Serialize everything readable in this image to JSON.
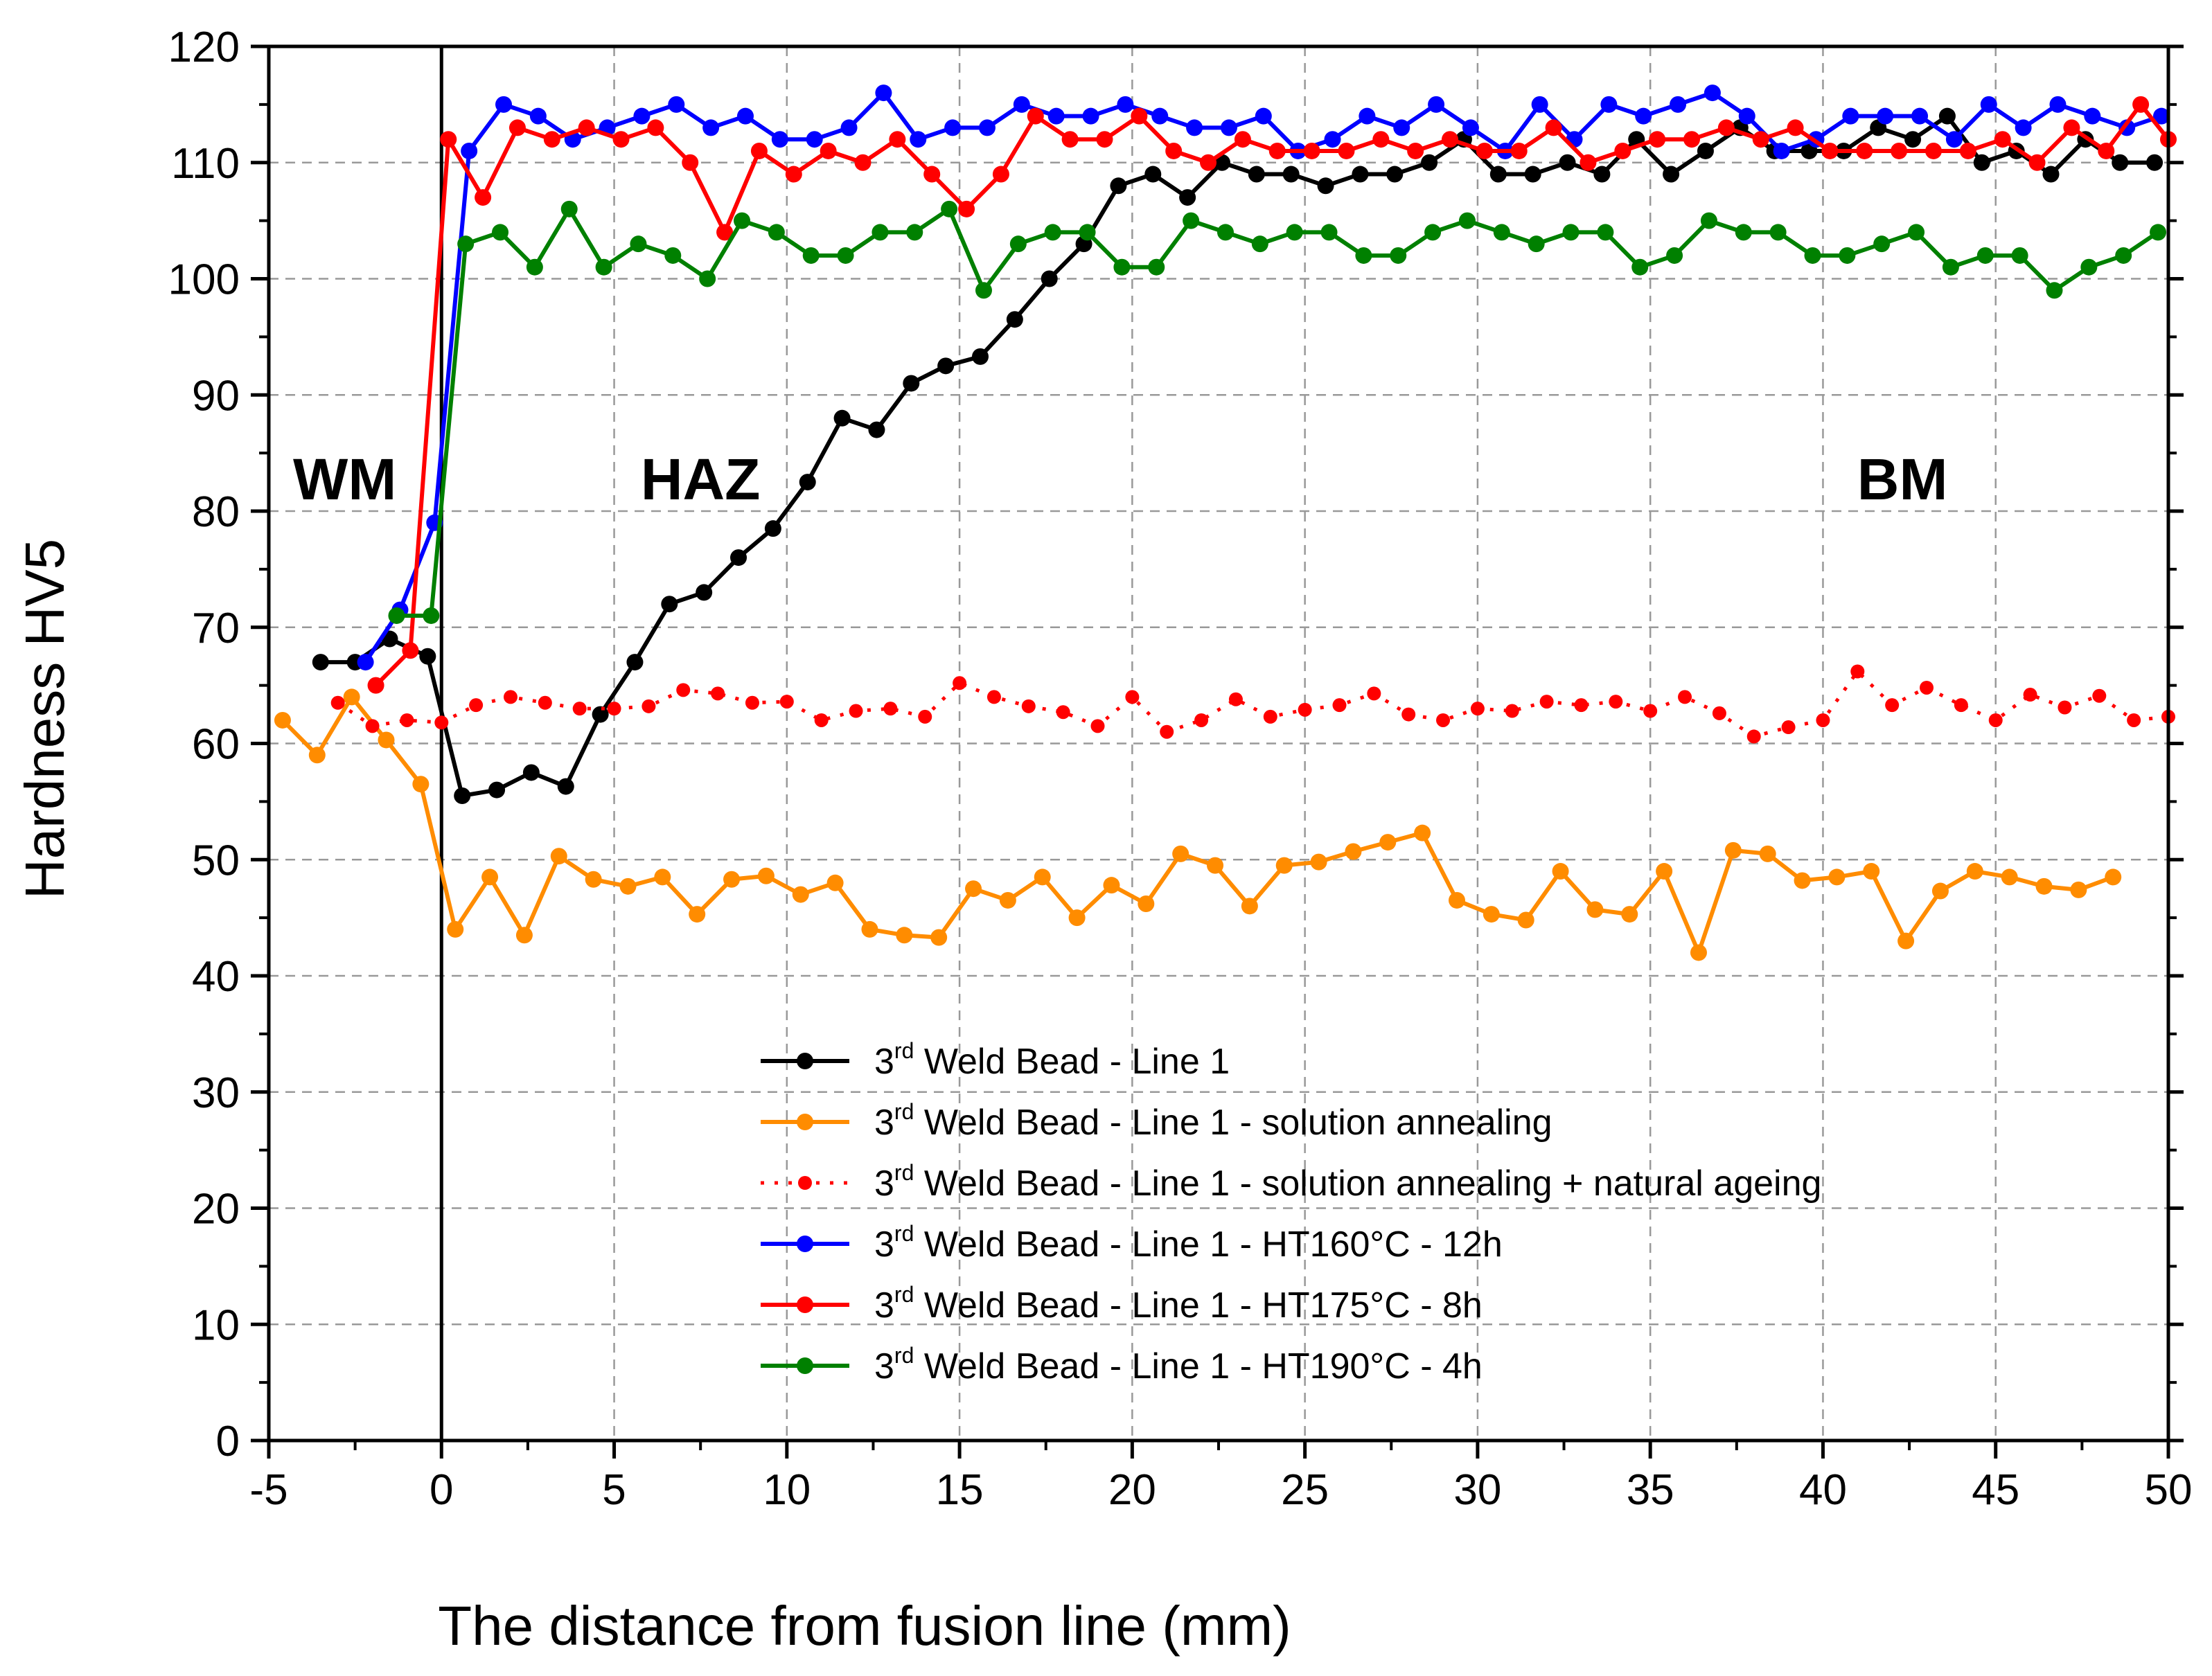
{
  "chart_data": {
    "type": "line",
    "title": "",
    "xlabel": "The distance from fusion line (mm)",
    "ylabel": "Hardness HV5",
    "xlim": [
      -5,
      50
    ],
    "ylim": [
      0,
      120
    ],
    "xticks": [
      -5,
      0,
      5,
      10,
      15,
      20,
      25,
      30,
      35,
      40,
      45,
      50
    ],
    "yticks": [
      0,
      10,
      20,
      30,
      40,
      50,
      60,
      70,
      80,
      90,
      100,
      110,
      120
    ],
    "grid": true,
    "fusion_line_x": 0,
    "legend_position": "bottom-right",
    "annotations": [
      {
        "text": "WM",
        "x": -2.8,
        "y": 81
      },
      {
        "text": "HAZ",
        "x": 7.5,
        "y": 81
      },
      {
        "text": "BM",
        "x": 42.3,
        "y": 81
      }
    ],
    "series": [
      {
        "name": "3rd Weld Bead - Line 1",
        "legend_pre": "3",
        "legend_sup": "rd",
        "legend_post": " Weld Bead - Line 1",
        "color": "#000000",
        "dashed": false,
        "x": [
          -3.5,
          -2.5,
          -1.5,
          -0.4,
          0.6,
          1.6,
          2.6,
          3.6,
          4.6,
          5.6,
          6.6,
          7.6,
          8.6,
          9.6,
          10.6,
          11.6,
          12.6,
          13.6,
          14.6,
          15.6,
          16.6,
          17.6,
          18.6,
          19.6,
          20.6,
          21.6,
          22.6,
          23.6,
          24.6,
          25.6,
          26.6,
          27.6,
          28.6,
          29.6,
          30.6,
          31.6,
          32.6,
          33.6,
          34.6,
          35.6,
          36.6,
          37.6,
          38.6,
          39.6,
          40.6,
          41.6,
          42.6,
          43.6,
          44.6,
          45.6,
          46.6,
          47.6,
          48.6,
          49.6
        ],
        "y": [
          67,
          67,
          69,
          67.5,
          55.5,
          56,
          57.5,
          56.3,
          62.5,
          67,
          72,
          73,
          76,
          78.5,
          82.5,
          88,
          87,
          91,
          92.5,
          93.3,
          96.5,
          100,
          103,
          108,
          109,
          107,
          110,
          109,
          109,
          108,
          109,
          109,
          110,
          112,
          109,
          109,
          110,
          109,
          112,
          109,
          111,
          113,
          111,
          111,
          111,
          113,
          112,
          114,
          110,
          111,
          109,
          112,
          110,
          110
        ]
      },
      {
        "name": "3rd Weld Bead - Line 1 - solution annealing",
        "legend_pre": "3",
        "legend_sup": "rd",
        "legend_post": " Weld Bead - Line 1 - solution annealing",
        "color": "#FF8C00",
        "dashed": false,
        "x": [
          -4.6,
          -3.6,
          -2.6,
          -1.6,
          -0.6,
          0.4,
          1.4,
          2.4,
          3.4,
          4.4,
          5.4,
          6.4,
          7.4,
          8.4,
          9.4,
          10.4,
          11.4,
          12.4,
          13.4,
          14.4,
          15.4,
          16.4,
          17.4,
          18.4,
          19.4,
          20.4,
          21.4,
          22.4,
          23.4,
          24.4,
          25.4,
          26.4,
          27.4,
          28.4,
          29.4,
          30.4,
          31.4,
          32.4,
          33.4,
          34.4,
          35.4,
          36.4,
          37.4,
          38.4,
          39.4,
          40.4,
          41.4,
          42.4,
          43.4,
          44.4,
          45.4,
          46.4,
          47.4,
          48.4
        ],
        "y": [
          62,
          59,
          64,
          60.3,
          56.5,
          44,
          48.5,
          43.5,
          50.3,
          48.3,
          47.7,
          48.5,
          45.3,
          48.3,
          48.6,
          47,
          48,
          44,
          43.5,
          43.3,
          47.5,
          46.5,
          48.5,
          45,
          47.8,
          46.2,
          50.5,
          49.5,
          46,
          49.5,
          49.8,
          50.7,
          51.5,
          52.3,
          46.5,
          45.3,
          44.8,
          49,
          45.7,
          45.3,
          49,
          42,
          50.8,
          50.5,
          48.2,
          48.5,
          49,
          43,
          47.3,
          49,
          48.5,
          47.7,
          47.4,
          48.5
        ]
      },
      {
        "name": "3rd Weld Bead - Line 1 - solution annealing + natural ageing",
        "legend_pre": "3",
        "legend_sup": "rd",
        "legend_post": " Weld Bead - Line 1 - solution annealing + natural ageing",
        "color": "#FF0000",
        "dashed": true,
        "x": [
          -3,
          -2,
          -1,
          0,
          1,
          2,
          3,
          4,
          5,
          6,
          7,
          8,
          9,
          10,
          11,
          12,
          13,
          14,
          15,
          16,
          17,
          18,
          19,
          20,
          21,
          22,
          23,
          24,
          25,
          26,
          27,
          28,
          29,
          30,
          31,
          32,
          33,
          34,
          35,
          36,
          37,
          38,
          39,
          40,
          41,
          42,
          43,
          44,
          45,
          46,
          47,
          48,
          49,
          50
        ],
        "y": [
          63.5,
          61.5,
          62,
          61.8,
          63.3,
          64,
          63.5,
          63,
          63,
          63.2,
          64.6,
          64.3,
          63.5,
          63.6,
          62,
          62.8,
          63,
          62.3,
          65.2,
          64,
          63.2,
          62.7,
          61.5,
          64,
          61,
          62,
          63.8,
          62.3,
          62.9,
          63.3,
          64.3,
          62.5,
          62,
          63,
          62.8,
          63.6,
          63.3,
          63.6,
          62.8,
          64,
          62.6,
          60.6,
          61.4,
          62,
          66.2,
          63.3,
          64.8,
          63.3,
          62,
          64.2,
          63.1,
          64.1,
          62,
          62.3
        ]
      },
      {
        "name": "3rd Weld Bead - Line 1 - HT160°C - 12h",
        "legend_pre": "3",
        "legend_sup": "rd",
        "legend_post": " Weld Bead - Line 1 - HT160°C - 12h",
        "color": "#0000FF",
        "dashed": false,
        "x": [
          -2.2,
          -1.2,
          -0.2,
          0.8,
          1.8,
          2.8,
          3.8,
          4.8,
          5.8,
          6.8,
          7.8,
          8.8,
          9.8,
          10.8,
          11.8,
          12.8,
          13.8,
          14.8,
          15.8,
          16.8,
          17.8,
          18.8,
          19.8,
          20.8,
          21.8,
          22.8,
          23.8,
          24.8,
          25.8,
          26.8,
          27.8,
          28.8,
          29.8,
          30.8,
          31.8,
          32.8,
          33.8,
          34.8,
          35.8,
          36.8,
          37.8,
          38.8,
          39.8,
          40.8,
          41.8,
          42.8,
          43.8,
          44.8,
          45.8,
          46.8,
          47.8,
          48.8,
          49.8
        ],
        "y": [
          67,
          71.5,
          79,
          111,
          115,
          114,
          112,
          113,
          114,
          115,
          113,
          114,
          112,
          112,
          113,
          116,
          112,
          113,
          113,
          115,
          114,
          114,
          115,
          114,
          113,
          113,
          114,
          111,
          112,
          114,
          113,
          115,
          113,
          111,
          115,
          112,
          115,
          114,
          115,
          116,
          114,
          111,
          112,
          114,
          114,
          114,
          112,
          115,
          113,
          115,
          114,
          113,
          114
        ]
      },
      {
        "name": "3rd Weld Bead - Line 1 - HT175°C - 8h",
        "legend_pre": "3",
        "legend_sup": "rd",
        "legend_post": " Weld Bead - Line 1 - HT175°C - 8h",
        "color": "#FF0000",
        "dashed": false,
        "x": [
          -1.9,
          -0.9,
          0.2,
          1.2,
          2.2,
          3.2,
          4.2,
          5.2,
          6.2,
          7.2,
          8.2,
          9.2,
          10.2,
          11.2,
          12.2,
          13.2,
          14.2,
          15.2,
          16.2,
          17.2,
          18.2,
          19.2,
          20.2,
          21.2,
          22.2,
          23.2,
          24.2,
          25.2,
          26.2,
          27.2,
          28.2,
          29.2,
          30.2,
          31.2,
          32.2,
          33.2,
          34.2,
          35.2,
          36.2,
          37.2,
          38.2,
          39.2,
          40.2,
          41.2,
          42.2,
          43.2,
          44.2,
          45.2,
          46.2,
          47.2,
          48.2,
          49.2,
          50
        ],
        "y": [
          65,
          68,
          112,
          107,
          113,
          112,
          113,
          112,
          113,
          110,
          104,
          111,
          109,
          111,
          110,
          112,
          109,
          106,
          109,
          114,
          112,
          112,
          114,
          111,
          110,
          112,
          111,
          111,
          111,
          112,
          111,
          112,
          111,
          111,
          113,
          110,
          111,
          112,
          112,
          113,
          112,
          113,
          111,
          111,
          111,
          111,
          111,
          112,
          110,
          113,
          111,
          115,
          112
        ]
      },
      {
        "name": "3rd Weld Bead - Line 1 - HT190°C - 4h",
        "legend_pre": "3",
        "legend_sup": "rd",
        "legend_post": " Weld Bead - Line 1 - HT190°C - 4h",
        "color": "#008000",
        "dashed": false,
        "x": [
          -1.3,
          -0.3,
          0.7,
          1.7,
          2.7,
          3.7,
          4.7,
          5.7,
          6.7,
          7.7,
          8.7,
          9.7,
          10.7,
          11.7,
          12.7,
          13.7,
          14.7,
          15.7,
          16.7,
          17.7,
          18.7,
          19.7,
          20.7,
          21.7,
          22.7,
          23.7,
          24.7,
          25.7,
          26.7,
          27.7,
          28.7,
          29.7,
          30.7,
          31.7,
          32.7,
          33.7,
          34.7,
          35.7,
          36.7,
          37.7,
          38.7,
          39.7,
          40.7,
          41.7,
          42.7,
          43.7,
          44.7,
          45.7,
          46.7,
          47.7,
          48.7,
          49.7
        ],
        "y": [
          71,
          71,
          103,
          104,
          101,
          106,
          101,
          103,
          102,
          100,
          105,
          104,
          102,
          102,
          104,
          104,
          106,
          99,
          103,
          104,
          104,
          101,
          101,
          105,
          104,
          103,
          104,
          104,
          102,
          102,
          104,
          105,
          104,
          103,
          104,
          104,
          101,
          102,
          105,
          104,
          104,
          102,
          102,
          103,
          104,
          101,
          102,
          102,
          99,
          101,
          102,
          104
        ]
      }
    ]
  }
}
